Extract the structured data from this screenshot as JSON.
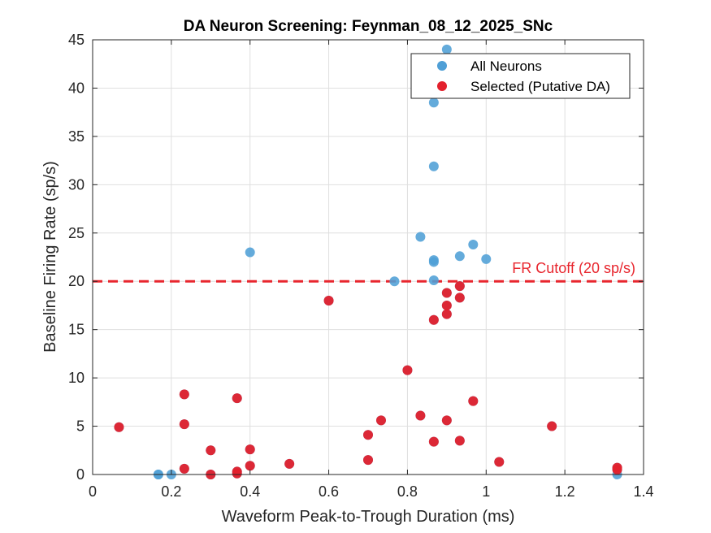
{
  "chart_data": {
    "type": "scatter",
    "title": "DA Neuron Screening: Feynman_08_12_2025_SNc",
    "xlabel": "Waveform Peak-to-Trough Duration (ms)",
    "ylabel": "Baseline Firing Rate (sp/s)",
    "xlim": [
      0,
      1.4
    ],
    "ylim": [
      0,
      45
    ],
    "xticks": [
      "0",
      "0.2",
      "0.4",
      "0.6",
      "0.8",
      "1",
      "1.2",
      "1.4"
    ],
    "yticks": [
      "0",
      "5",
      "10",
      "15",
      "20",
      "25",
      "30",
      "35",
      "40",
      "45"
    ],
    "grid": true,
    "legend_location": "top-right",
    "series": [
      {
        "name": "All Neurons",
        "color": "#4f9fd6",
        "points": [
          [
            0.9,
            44.0
          ],
          [
            0.867,
            38.5
          ],
          [
            0.867,
            31.9
          ],
          [
            0.833,
            24.6
          ],
          [
            0.967,
            23.8
          ],
          [
            0.4,
            23.0
          ],
          [
            0.933,
            22.6
          ],
          [
            1.0,
            22.3
          ],
          [
            0.867,
            22.2
          ],
          [
            0.867,
            22.0
          ],
          [
            0.767,
            20.0
          ],
          [
            0.867,
            20.1
          ],
          [
            0.9,
            18.8
          ],
          [
            0.9,
            17.5
          ],
          [
            0.9,
            16.6
          ],
          [
            0.867,
            16.0
          ],
          [
            0.933,
            19.5
          ],
          [
            0.933,
            18.3
          ],
          [
            0.6,
            18.0
          ],
          [
            0.8,
            10.8
          ],
          [
            0.233,
            8.3
          ],
          [
            0.367,
            7.9
          ],
          [
            0.967,
            7.6
          ],
          [
            0.833,
            6.1
          ],
          [
            0.733,
            5.6
          ],
          [
            0.9,
            5.6
          ],
          [
            0.233,
            5.2
          ],
          [
            1.167,
            5.0
          ],
          [
            0.067,
            4.9
          ],
          [
            0.7,
            4.1
          ],
          [
            0.867,
            3.4
          ],
          [
            0.933,
            3.5
          ],
          [
            0.3,
            2.5
          ],
          [
            0.4,
            2.6
          ],
          [
            0.7,
            1.5
          ],
          [
            1.033,
            1.3
          ],
          [
            0.5,
            1.1
          ],
          [
            0.4,
            0.9
          ],
          [
            0.233,
            0.6
          ],
          [
            1.333,
            0.7
          ],
          [
            1.333,
            0.5
          ],
          [
            0.367,
            0.3
          ],
          [
            0.367,
            0.1
          ],
          [
            0.3,
            0.0
          ],
          [
            0.167,
            0.0
          ],
          [
            0.167,
            0.0
          ],
          [
            0.2,
            0.0
          ],
          [
            1.333,
            0.0
          ]
        ]
      },
      {
        "name": "Selected (Putative DA)",
        "color": "#e3212d",
        "points": [
          [
            0.9,
            18.8
          ],
          [
            0.9,
            17.5
          ],
          [
            0.9,
            16.6
          ],
          [
            0.867,
            16.0
          ],
          [
            0.933,
            19.5
          ],
          [
            0.933,
            18.3
          ],
          [
            0.6,
            18.0
          ],
          [
            0.8,
            10.8
          ],
          [
            0.233,
            8.3
          ],
          [
            0.367,
            7.9
          ],
          [
            0.967,
            7.6
          ],
          [
            0.833,
            6.1
          ],
          [
            0.733,
            5.6
          ],
          [
            0.9,
            5.6
          ],
          [
            0.233,
            5.2
          ],
          [
            1.167,
            5.0
          ],
          [
            0.067,
            4.9
          ],
          [
            0.7,
            4.1
          ],
          [
            0.867,
            3.4
          ],
          [
            0.933,
            3.5
          ],
          [
            0.3,
            2.5
          ],
          [
            0.4,
            2.6
          ],
          [
            0.7,
            1.5
          ],
          [
            1.033,
            1.3
          ],
          [
            0.5,
            1.1
          ],
          [
            0.4,
            0.9
          ],
          [
            0.233,
            0.6
          ],
          [
            1.333,
            0.7
          ],
          [
            1.333,
            0.5
          ],
          [
            0.367,
            0.3
          ],
          [
            0.367,
            0.1
          ],
          [
            0.3,
            0.0
          ]
        ]
      }
    ],
    "reference_line": {
      "axis": "y",
      "value": 20,
      "style": "dashed",
      "color": "#e8262e",
      "label": "FR Cutoff (20 sp/s)"
    }
  }
}
